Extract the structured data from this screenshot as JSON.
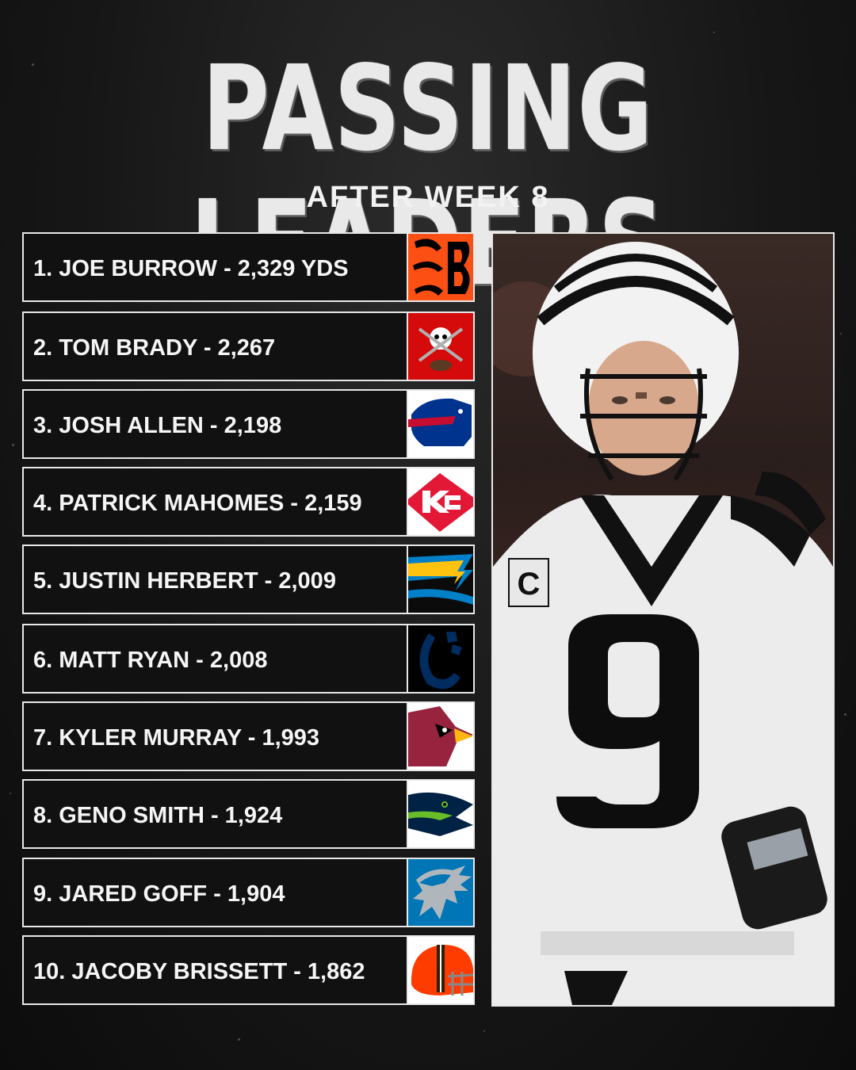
{
  "header": {
    "title": "PASSING LEADERS",
    "subtitle": "AFTER WEEK 8"
  },
  "leaders": [
    {
      "label": "1. JOE BURROW - 2,329 YDS",
      "logo": "bengals-logo-icon",
      "colors": [
        "#fb4f14",
        "#000000"
      ]
    },
    {
      "label": "2. TOM BRADY - 2,267",
      "logo": "buccaneers-logo-icon",
      "colors": [
        "#d50a0a",
        "#ffffff"
      ]
    },
    {
      "label": "3. JOSH ALLEN - 2,198",
      "logo": "bills-logo-icon",
      "colors": [
        "#00338d",
        "#c60c30"
      ]
    },
    {
      "label": "4. PATRICK MAHOMES - 2,159",
      "logo": "chiefs-logo-icon",
      "colors": [
        "#e31837",
        "#ffffff"
      ]
    },
    {
      "label": "5. JUSTIN HERBERT - 2,009",
      "logo": "chargers-logo-icon",
      "colors": [
        "#0080c6",
        "#ffc20e"
      ]
    },
    {
      "label": "6. MATT RYAN - 2,008",
      "logo": "colts-logo-icon",
      "colors": [
        "#002c5f",
        "#ffffff"
      ]
    },
    {
      "label": "7. KYLER MURRAY - 1,993",
      "logo": "cardinals-logo-icon",
      "colors": [
        "#97233f",
        "#ffb612"
      ]
    },
    {
      "label": "8. GENO SMITH - 1,924",
      "logo": "seahawks-logo-icon",
      "colors": [
        "#002244",
        "#69be28"
      ]
    },
    {
      "label": "9. JARED GOFF - 1,904",
      "logo": "lions-logo-icon",
      "colors": [
        "#0076b6",
        "#b0b7bc"
      ]
    },
    {
      "label": "10. JACOBY BRISSETT - 1,862",
      "logo": "browns-logo-icon",
      "colors": [
        "#ff3c00",
        "#311d00"
      ]
    }
  ],
  "photo": {
    "jersey_number": "9",
    "captain_patch": "C"
  }
}
